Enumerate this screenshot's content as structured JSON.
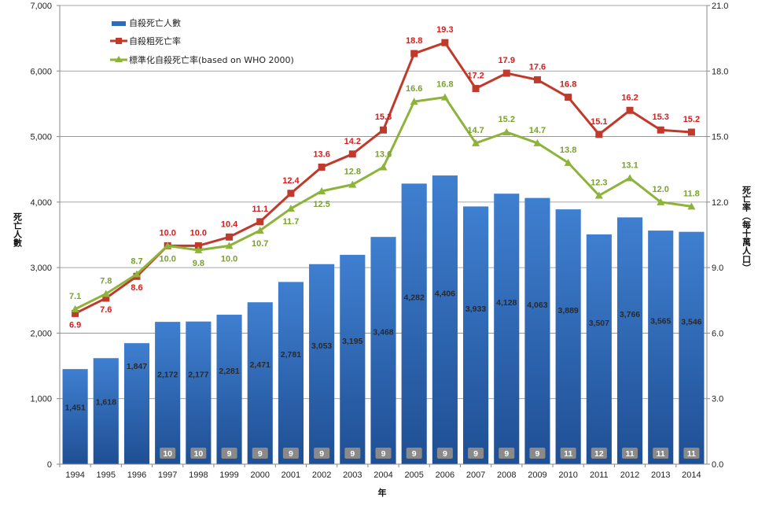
{
  "chart_data": {
    "type": "bar+line",
    "title": "",
    "xlabel": "年",
    "ylabel": "死亡人數",
    "y2label": "死亡率（每十萬人口）",
    "ylim": [
      0,
      7000
    ],
    "y2lim": [
      0,
      21.0
    ],
    "yticks": [
      "0",
      "1,000",
      "2,000",
      "3,000",
      "4,000",
      "5,000",
      "6,000",
      "7,000"
    ],
    "y2ticks": [
      "0.0",
      "3.0",
      "6.0",
      "9.0",
      "12.0",
      "15.0",
      "18.0",
      "21.0"
    ],
    "grid": true,
    "legend_position": "top-left",
    "categories": [
      "1994",
      "1995",
      "1996",
      "1997",
      "1998",
      "1999",
      "2000",
      "2001",
      "2002",
      "2003",
      "2004",
      "2005",
      "2006",
      "2007",
      "2008",
      "2009",
      "2010",
      "2011",
      "2012",
      "2013",
      "2014"
    ],
    "series": [
      {
        "name": "自殺死亡人數",
        "type": "bar",
        "axis": "left",
        "color": "#2e6bbf",
        "values": [
          1451,
          1618,
          1847,
          2172,
          2177,
          2281,
          2471,
          2781,
          3053,
          3195,
          3468,
          4282,
          4406,
          3933,
          4128,
          4063,
          3889,
          3507,
          3766,
          3565,
          3546
        ],
        "labels": [
          "1,451",
          "1,618",
          "1,847",
          "2,172",
          "2,177",
          "2,281",
          "2,471",
          "2,781",
          "3,053",
          "3,195",
          "3,468",
          "4,282",
          "4,406",
          "3,933",
          "4,128",
          "4,063",
          "3,889",
          "3,507",
          "3,766",
          "3,565",
          "3,546"
        ]
      },
      {
        "name": "自殺粗死亡率",
        "type": "line",
        "axis": "right",
        "color": "#c0392b",
        "values": [
          6.9,
          7.6,
          8.6,
          10.0,
          10.0,
          10.4,
          11.1,
          12.4,
          13.6,
          14.2,
          15.3,
          18.8,
          19.3,
          17.2,
          17.9,
          17.6,
          16.8,
          15.1,
          16.2,
          15.3,
          15.2
        ]
      },
      {
        "name": "標準化自殺死亡率(based on WHO 2000)",
        "type": "line",
        "axis": "right",
        "color": "#8db33a",
        "values": [
          7.1,
          7.8,
          8.7,
          10.0,
          9.8,
          10.0,
          10.7,
          11.7,
          12.5,
          12.8,
          13.6,
          16.6,
          16.8,
          14.7,
          15.2,
          14.7,
          13.8,
          12.3,
          13.1,
          12.0,
          11.8
        ]
      }
    ],
    "rank_badges": [
      null,
      null,
      null,
      "10",
      "10",
      "9",
      "9",
      "9",
      "9",
      "9",
      "9",
      "9",
      "9",
      "9",
      "9",
      "9",
      "11",
      "12",
      "11",
      "11",
      "11"
    ]
  }
}
